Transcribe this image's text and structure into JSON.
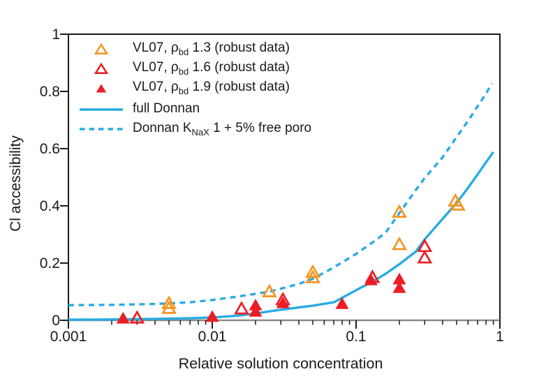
{
  "colors": {
    "orange": "#F7941E",
    "red": "#EC1C24",
    "blue": "#29ABE2",
    "axis": "#1a1a1a",
    "baseline": "#8a8a8a"
  },
  "legend": {
    "items": [
      {
        "pre": "VL07, ρ",
        "sub": "bd",
        "post": " 1.3 (robust data)"
      },
      {
        "pre": "VL07, ρ",
        "sub": "bd",
        "post": " 1.6 (robust data)"
      },
      {
        "pre": "VL07, ρ",
        "sub": "bd",
        "post": " 1.9 (robust data)"
      },
      {
        "pre": "full Donnan",
        "sub": "",
        "post": ""
      },
      {
        "pre": "Donnan K",
        "sub": "NaX",
        "post": " 1 + 5% free poro"
      }
    ]
  },
  "chart_data": {
    "type": "scatter",
    "title": "",
    "xlabel": "Relative solution concentration",
    "ylabel": "Cl accessibility",
    "xscale": "log",
    "xlim": [
      0.001,
      1
    ],
    "ylim": [
      0,
      1
    ],
    "x_ticks": [
      0.001,
      0.01,
      0.1,
      1
    ],
    "x_ticklabels": [
      "0.001",
      "0.01",
      "0.1",
      "1"
    ],
    "y_ticks": [
      0,
      0.2,
      0.4,
      0.6,
      0.8,
      1
    ],
    "y_ticklabels": [
      "0",
      "0.2",
      "0.4",
      "0.6",
      "0.8",
      "1"
    ],
    "grid": false,
    "legend_position": "upper-left-inside",
    "series": [
      {
        "name": "VL07, ρbd 1.3 (robust data)",
        "slug": "vl07-rho-bd-1.3",
        "kind": "scatter",
        "marker": "triangle-open",
        "color": "orange",
        "points": [
          [
            0.005,
            0.059
          ],
          [
            0.005,
            0.042
          ],
          [
            0.025,
            0.1
          ],
          [
            0.05,
            0.168
          ],
          [
            0.05,
            0.149
          ],
          [
            0.2,
            0.378
          ],
          [
            0.2,
            0.265
          ],
          [
            0.49,
            0.417
          ],
          [
            0.51,
            0.403
          ]
        ]
      },
      {
        "name": "VL07, ρbd 1.6 (robust data)",
        "slug": "vl07-rho-bd-1.6",
        "kind": "scatter",
        "marker": "triangle-open",
        "color": "red",
        "points": [
          [
            0.003,
            0.008
          ],
          [
            0.016,
            0.04
          ],
          [
            0.031,
            0.072
          ],
          [
            0.13,
            0.15
          ],
          [
            0.3,
            0.258
          ],
          [
            0.3,
            0.218
          ]
        ]
      },
      {
        "name": "VL07, ρbd 1.9 (robust data)",
        "slug": "vl07-rho-bd-1.9",
        "kind": "scatter",
        "marker": "triangle-filled",
        "color": "red",
        "points": [
          [
            0.0024,
            0.006
          ],
          [
            0.01,
            0.012
          ],
          [
            0.02,
            0.052
          ],
          [
            0.02,
            0.03
          ],
          [
            0.031,
            0.06
          ],
          [
            0.08,
            0.057
          ],
          [
            0.127,
            0.14
          ],
          [
            0.2,
            0.143
          ],
          [
            0.2,
            0.113
          ]
        ]
      },
      {
        "name": "full Donnan",
        "slug": "full-donnan",
        "kind": "line",
        "style": "solid",
        "color": "blue",
        "points": [
          [
            0.001,
            0.002
          ],
          [
            0.002,
            0.003
          ],
          [
            0.004,
            0.005
          ],
          [
            0.007,
            0.007
          ],
          [
            0.01,
            0.01
          ],
          [
            0.015,
            0.016
          ],
          [
            0.02,
            0.024
          ],
          [
            0.03,
            0.037
          ],
          [
            0.05,
            0.051
          ],
          [
            0.07,
            0.063
          ],
          [
            0.1,
            0.105
          ],
          [
            0.13,
            0.135
          ],
          [
            0.16,
            0.162
          ],
          [
            0.2,
            0.196
          ],
          [
            0.26,
            0.24
          ],
          [
            0.3,
            0.283
          ],
          [
            0.4,
            0.355
          ],
          [
            0.5,
            0.41
          ],
          [
            0.6,
            0.463
          ],
          [
            0.7,
            0.51
          ],
          [
            0.8,
            0.552
          ],
          [
            0.9,
            0.588
          ]
        ]
      },
      {
        "name": "Donnan KNaX 1 + 5% free poro",
        "slug": "donnan-knax-free-poro",
        "kind": "line",
        "style": "dashed",
        "color": "blue",
        "points": [
          [
            0.001,
            0.053
          ],
          [
            0.002,
            0.054
          ],
          [
            0.004,
            0.057
          ],
          [
            0.007,
            0.063
          ],
          [
            0.01,
            0.071
          ],
          [
            0.015,
            0.083
          ],
          [
            0.025,
            0.1
          ],
          [
            0.04,
            0.127
          ],
          [
            0.05,
            0.145
          ],
          [
            0.07,
            0.185
          ],
          [
            0.1,
            0.232
          ],
          [
            0.13,
            0.272
          ],
          [
            0.16,
            0.305
          ],
          [
            0.2,
            0.375
          ],
          [
            0.26,
            0.455
          ],
          [
            0.3,
            0.497
          ],
          [
            0.4,
            0.57
          ],
          [
            0.5,
            0.64
          ],
          [
            0.6,
            0.697
          ],
          [
            0.7,
            0.748
          ],
          [
            0.8,
            0.792
          ],
          [
            0.88,
            0.828
          ]
        ]
      }
    ]
  }
}
